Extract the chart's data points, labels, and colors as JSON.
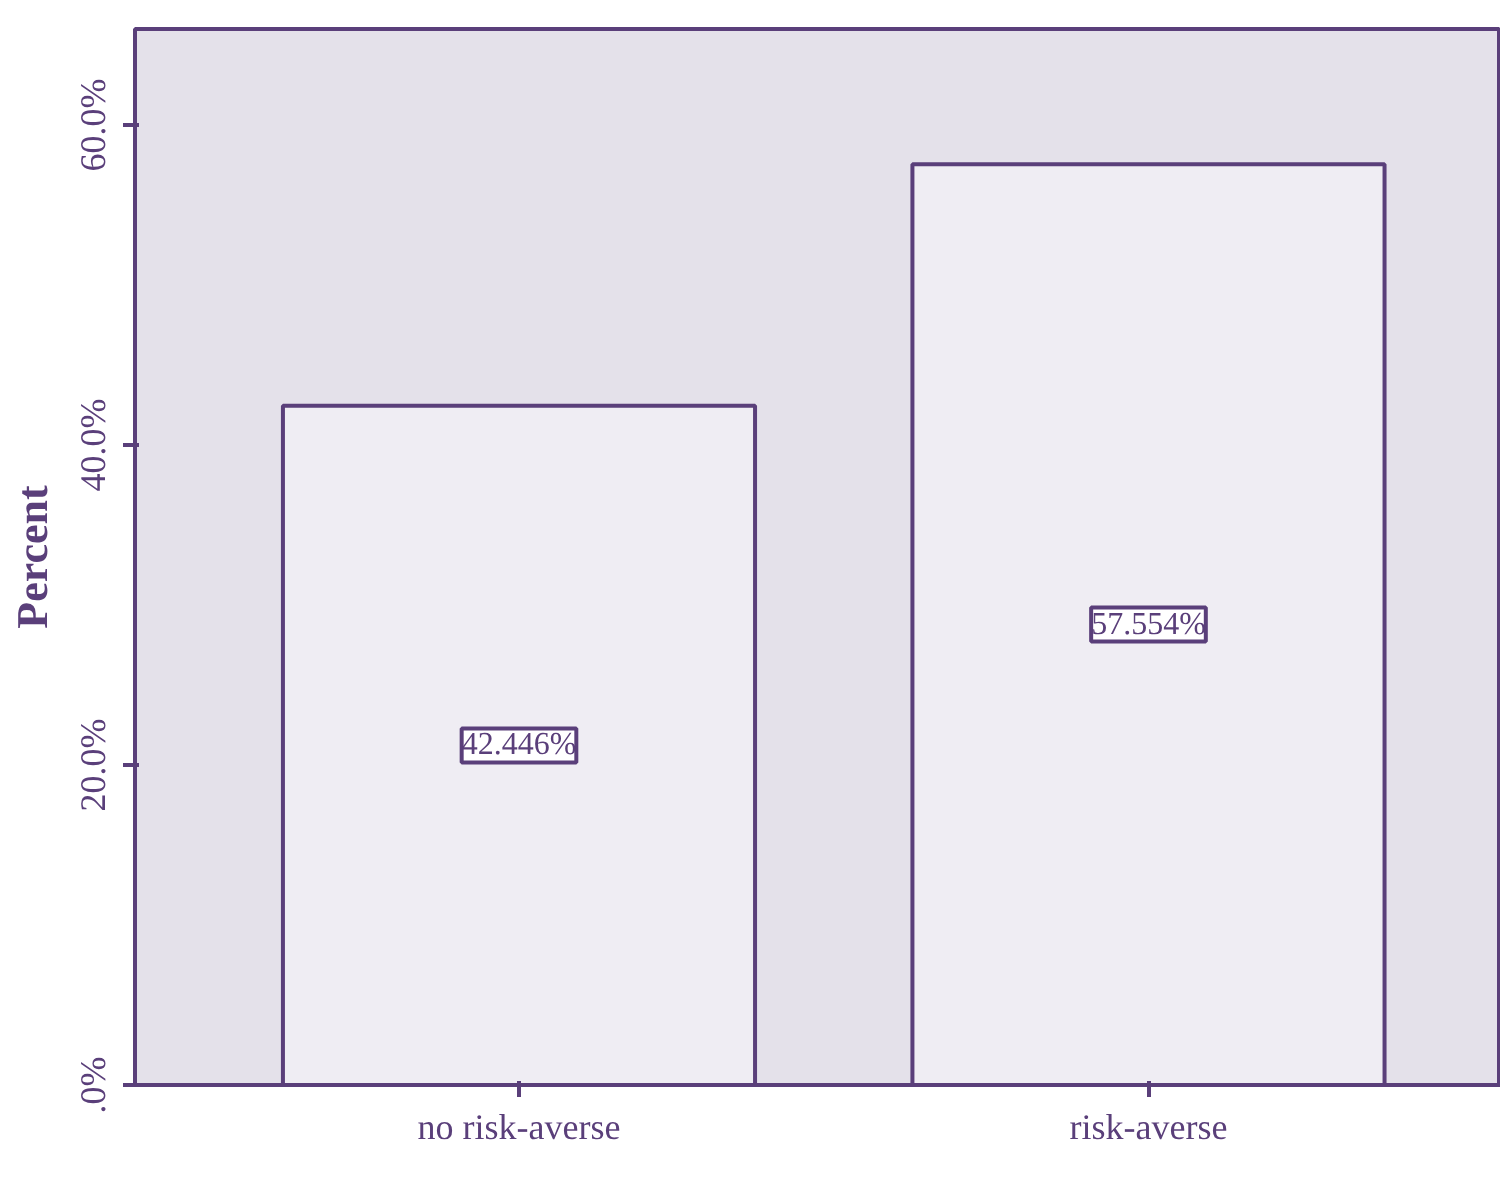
{
  "chart_data": {
    "type": "bar",
    "ylabel": "Percent",
    "categories": [
      "no risk-averse",
      "risk-averse"
    ],
    "values": [
      42.446,
      57.554
    ],
    "value_labels": [
      "42.446%",
      "57.554%"
    ],
    "color": "#efedf3",
    "ylim": [
      0,
      66
    ],
    "yticks": [
      {
        "value": 0,
        "label": ".0%"
      },
      {
        "value": 20,
        "label": "20.0%"
      },
      {
        "value": 40,
        "label": "40.0%"
      },
      {
        "value": 60,
        "label": "60.0%"
      }
    ],
    "grid": false,
    "legend": false
  }
}
